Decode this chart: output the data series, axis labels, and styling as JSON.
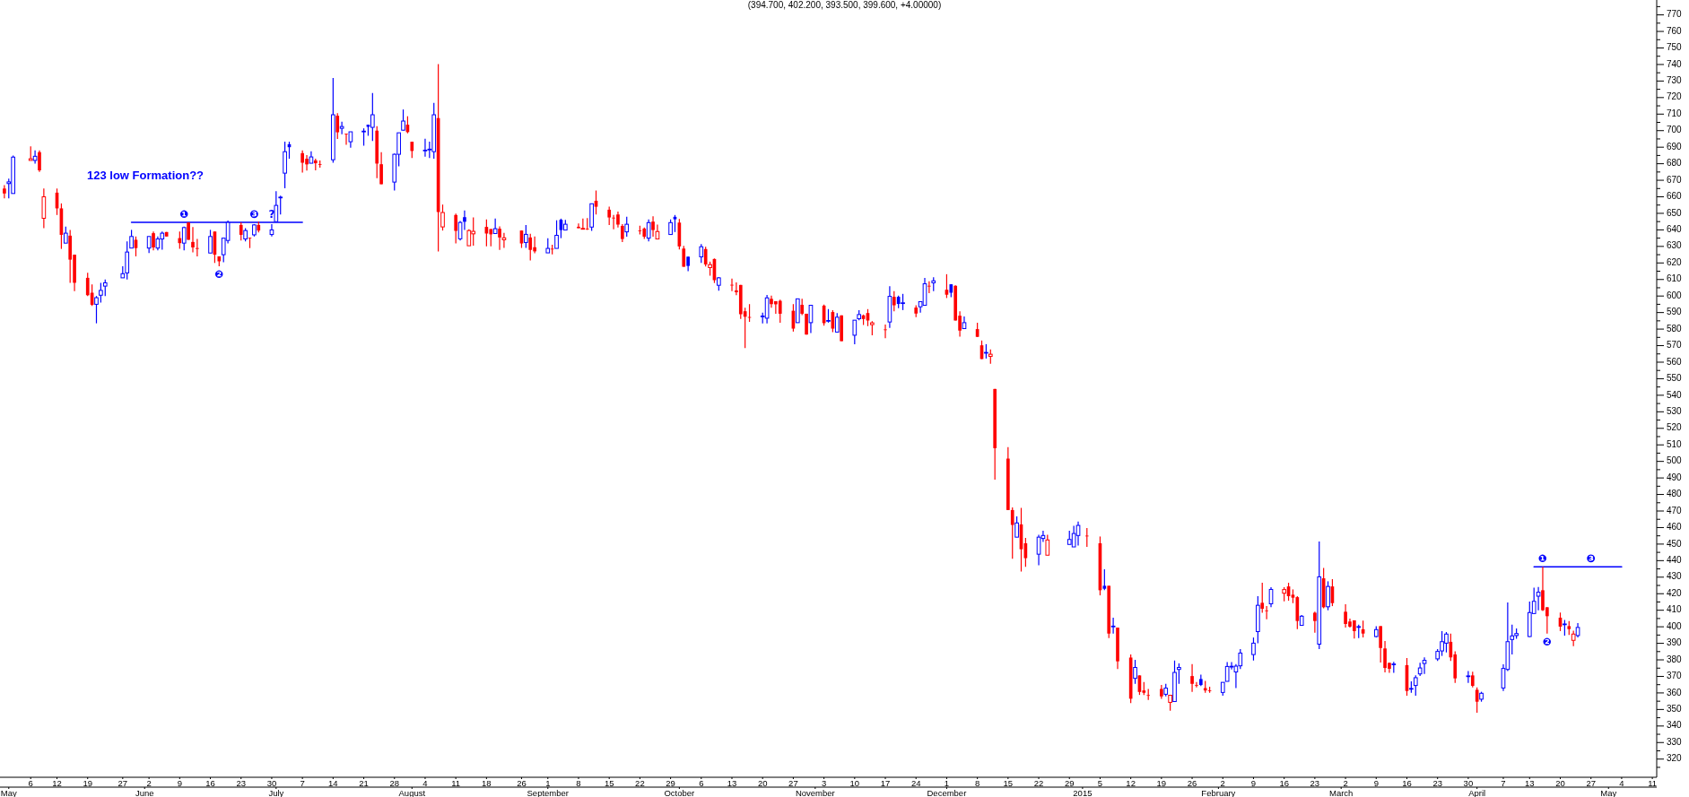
{
  "chart_data": {
    "type": "candlestick",
    "title": "(394.700, 402.200, 393.500, 399.600, +4.00000)",
    "x": [
      "2014-04-30",
      "2014-05-01",
      "2014-05-02",
      "2014-05-06",
      "2014-05-07",
      "2014-05-08",
      "2014-05-09",
      "2014-05-12",
      "2014-05-13",
      "2014-05-14",
      "2014-05-15",
      "2014-05-16",
      "2014-05-19",
      "2014-05-20",
      "2014-05-21",
      "2014-05-22",
      "2014-05-23",
      "2014-05-27",
      "2014-05-28",
      "2014-05-29",
      "2014-05-30",
      "2014-06-02",
      "2014-06-03",
      "2014-06-04",
      "2014-06-05",
      "2014-06-06",
      "2014-06-09",
      "2014-06-10",
      "2014-06-11",
      "2014-06-12",
      "2014-06-13",
      "2014-06-16",
      "2014-06-17",
      "2014-06-18",
      "2014-06-19",
      "2014-06-20",
      "2014-06-23",
      "2014-06-24",
      "2014-06-25",
      "2014-06-26",
      "2014-06-27",
      "2014-06-30",
      "2014-07-01",
      "2014-07-02",
      "2014-07-03",
      "2014-07-04",
      "2014-07-07",
      "2014-07-08",
      "2014-07-09",
      "2014-07-10",
      "2014-07-11",
      "2014-07-14",
      "2014-07-15",
      "2014-07-16",
      "2014-07-17",
      "2014-07-18",
      "2014-07-21",
      "2014-07-22",
      "2014-07-23",
      "2014-07-24",
      "2014-07-25",
      "2014-07-28",
      "2014-07-29",
      "2014-07-30",
      "2014-07-31",
      "2014-08-01",
      "2014-08-04",
      "2014-08-05",
      "2014-08-06",
      "2014-08-07",
      "2014-08-08",
      "2014-08-11",
      "2014-08-12",
      "2014-08-13",
      "2014-08-14",
      "2014-08-15",
      "2014-08-18",
      "2014-08-19",
      "2014-08-20",
      "2014-08-21",
      "2014-08-22",
      "2014-08-26",
      "2014-08-27",
      "2014-08-28",
      "2014-08-29",
      "2014-09-01",
      "2014-09-02",
      "2014-09-03",
      "2014-09-04",
      "2014-09-05",
      "2014-09-08",
      "2014-09-09",
      "2014-09-10",
      "2014-09-11",
      "2014-09-12",
      "2014-09-15",
      "2014-09-16",
      "2014-09-17",
      "2014-09-18",
      "2014-09-19",
      "2014-09-22",
      "2014-09-23",
      "2014-09-24",
      "2014-09-25",
      "2014-09-26",
      "2014-09-29",
      "2014-09-30",
      "2014-10-01",
      "2014-10-02",
      "2014-10-03",
      "2014-10-06",
      "2014-10-07",
      "2014-10-08",
      "2014-10-09",
      "2014-10-10",
      "2014-10-13",
      "2014-10-14",
      "2014-10-15",
      "2014-10-16",
      "2014-10-17",
      "2014-10-20",
      "2014-10-21",
      "2014-10-22",
      "2014-10-23",
      "2014-10-24",
      "2014-10-27",
      "2014-10-28",
      "2014-10-29",
      "2014-10-30",
      "2014-10-31",
      "2014-11-03",
      "2014-11-04",
      "2014-11-05",
      "2014-11-06",
      "2014-11-07",
      "2014-11-10",
      "2014-11-11",
      "2014-11-12",
      "2014-11-13",
      "2014-11-14",
      "2014-11-17",
      "2014-11-18",
      "2014-11-19",
      "2014-11-20",
      "2014-11-21",
      "2014-11-24",
      "2014-11-25",
      "2014-11-26",
      "2014-11-27",
      "2014-11-28",
      "2014-12-01",
      "2014-12-02",
      "2014-12-03",
      "2014-12-04",
      "2014-12-05",
      "2014-12-08",
      "2014-12-09",
      "2014-12-10",
      "2014-12-11",
      "2014-12-12",
      "2014-12-15",
      "2014-12-16",
      "2014-12-17",
      "2014-12-18",
      "2014-12-19",
      "2014-12-22",
      "2014-12-23",
      "2014-12-24",
      "2014-12-29",
      "2014-12-30",
      "2014-12-31",
      "2015-01-02",
      "2015-01-05",
      "2015-01-06",
      "2015-01-07",
      "2015-01-08",
      "2015-01-09",
      "2015-01-12",
      "2015-01-13",
      "2015-01-14",
      "2015-01-15",
      "2015-01-16",
      "2015-01-19",
      "2015-01-20",
      "2015-01-21",
      "2015-01-22",
      "2015-01-23",
      "2015-01-26",
      "2015-01-27",
      "2015-01-28",
      "2015-01-29",
      "2015-01-30",
      "2015-02-02",
      "2015-02-03",
      "2015-02-04",
      "2015-02-05",
      "2015-02-06",
      "2015-02-09",
      "2015-02-10",
      "2015-02-11",
      "2015-02-12",
      "2015-02-13",
      "2015-02-16",
      "2015-02-17",
      "2015-02-18",
      "2015-02-19",
      "2015-02-20",
      "2015-02-23",
      "2015-02-24",
      "2015-02-25",
      "2015-02-26",
      "2015-02-27",
      "2015-03-02",
      "2015-03-03",
      "2015-03-04",
      "2015-03-05",
      "2015-03-06",
      "2015-03-09",
      "2015-03-10",
      "2015-03-11",
      "2015-03-12",
      "2015-03-13",
      "2015-03-16",
      "2015-03-17",
      "2015-03-18",
      "2015-03-19",
      "2015-03-20",
      "2015-03-23",
      "2015-03-24",
      "2015-03-25",
      "2015-03-26",
      "2015-03-27",
      "2015-03-30",
      "2015-03-31",
      "2015-04-01",
      "2015-04-02",
      "2015-04-07",
      "2015-04-08",
      "2015-04-09",
      "2015-04-10",
      "2015-04-13",
      "2015-04-14",
      "2015-04-15",
      "2015-04-16",
      "2015-04-17",
      "2015-04-20",
      "2015-04-21",
      "2015-04-22",
      "2015-04-23",
      "2015-04-24"
    ],
    "ohlc": [
      [
        665,
        667,
        659,
        662
      ],
      [
        668,
        671,
        659,
        669
      ],
      [
        662,
        685,
        662,
        684
      ],
      [
        682,
        690.5,
        682,
        683
      ],
      [
        682,
        688,
        680,
        684.5
      ],
      [
        687,
        688,
        675,
        676
      ],
      [
        647,
        665,
        641,
        660
      ],
      [
        662.5,
        665,
        649,
        653
      ],
      [
        653,
        656,
        628.5,
        637
      ],
      [
        632,
        642,
        632,
        638
      ],
      [
        636.5,
        640,
        608,
        622
      ],
      [
        625,
        625,
        603,
        608
      ],
      [
        611,
        614,
        600,
        600.5
      ],
      [
        602,
        607,
        594,
        594.7
      ],
      [
        595,
        600,
        583.5,
        599
      ],
      [
        600.5,
        608,
        596,
        603.4
      ],
      [
        606,
        610,
        600,
        608
      ],
      [
        611,
        618,
        611,
        613.5
      ],
      [
        614,
        633,
        610,
        626.6
      ],
      [
        629,
        640,
        629,
        636
      ],
      [
        634,
        636,
        624,
        629
      ],
      [
        629,
        636,
        626,
        636
      ],
      [
        638,
        639,
        627.6,
        629.4
      ],
      [
        629,
        636,
        627.6,
        634.5
      ],
      [
        634.5,
        639,
        628,
        638
      ],
      [
        638.7,
        638.7,
        636,
        636
      ],
      [
        635,
        639,
        628.5,
        632
      ],
      [
        632,
        642,
        627.6,
        641.4
      ],
      [
        644.5,
        644.5,
        634,
        634
      ],
      [
        632.7,
        641.7,
        626.4,
        629.4
      ],
      [
        629,
        634.5,
        624,
        628.5
      ],
      [
        626,
        640,
        626,
        636
      ],
      [
        639,
        639,
        620,
        625
      ],
      [
        624,
        624,
        618,
        621
      ],
      [
        625,
        635,
        620.4,
        635
      ],
      [
        633.6,
        645.7,
        631.8,
        644.5
      ],
      [
        643,
        644.5,
        633.6,
        637
      ],
      [
        634.5,
        641,
        633,
        639.6
      ],
      [
        635.3,
        635.3,
        629,
        635.2
      ],
      [
        637,
        643.5,
        636,
        643
      ],
      [
        643,
        645,
        638.5,
        639.6
      ],
      [
        637.2,
        643.5,
        636,
        640
      ],
      [
        645,
        663.4,
        645,
        654.8
      ],
      [
        659.5,
        660.7,
        649.3,
        659.8
      ],
      [
        674.3,
        693.3,
        665.2,
        687.3
      ],
      [
        691.8,
        693.3,
        683,
        690
      ],
      [
        686.4,
        688,
        674.7,
        680.6
      ],
      [
        683,
        685.2,
        675.8,
        679.6
      ],
      [
        680.3,
        687.5,
        680.3,
        684.1
      ],
      [
        682,
        683,
        676,
        680.3
      ],
      [
        679.8,
        681.9,
        677.6,
        679.6
      ],
      [
        682.4,
        731.8,
        680.6,
        709.6
      ],
      [
        709,
        710.5,
        695,
        699
      ],
      [
        701.4,
        705.4,
        697.8,
        702.5
      ],
      [
        698.2,
        698.2,
        691.5,
        698
      ],
      [
        693.3,
        699.3,
        689.7,
        699.3
      ],
      [
        699.5,
        701.4,
        690.9,
        699.7
      ],
      [
        703.6,
        703.6,
        696.9,
        702.3
      ],
      [
        702,
        722.8,
        693.7,
        709.6
      ],
      [
        700,
        702.7,
        671.2,
        680.1
      ],
      [
        679.7,
        687,
        667.6,
        667.6
      ],
      [
        668.9,
        686.1,
        663.8,
        685.7
      ],
      [
        685.7,
        698.7,
        678.5,
        698.7
      ],
      [
        700.3,
        712.8,
        700,
        705.8
      ],
      [
        703.6,
        708.7,
        698.4,
        699.1
      ],
      [
        693.3,
        693.3,
        683.4,
        687.7
      ],
      [
        688,
        695.1,
        684.3,
        688.2
      ],
      [
        688.5,
        693.3,
        683.4,
        688.8
      ],
      [
        687.3,
        716.8,
        683,
        709.6
      ],
      [
        707.6,
        740.3,
        627,
        650.8
      ],
      [
        641.8,
        655.3,
        639.6,
        650.5
      ],
      [
        649,
        649.9,
        631.8,
        639.4
      ],
      [
        634.6,
        645.4,
        633.6,
        644.5
      ],
      [
        647.7,
        651.7,
        640,
        644.9
      ],
      [
        630.4,
        640.3,
        630.4,
        639.6
      ],
      [
        637.6,
        647.6,
        630.4,
        639.1
      ],
      [
        641.8,
        646.3,
        630,
        637.8
      ],
      [
        640.5,
        640.5,
        630,
        637.3
      ],
      [
        637.8,
        646.8,
        637.8,
        640.7
      ],
      [
        640.7,
        642.1,
        627.9,
        635.4
      ],
      [
        634,
        638.2,
        629.1,
        635.2
      ],
      [
        639.6,
        639.6,
        629.1,
        631.8
      ],
      [
        632.4,
        643,
        629.1,
        637.3
      ],
      [
        635.4,
        637.6,
        621.5,
        627.9
      ],
      [
        629.5,
        636,
        625.9,
        627
      ],
      [
        626.1,
        634.9,
        626.1,
        628.8
      ],
      [
        628.6,
        631,
        625.2,
        628.4
      ],
      [
        628.8,
        645.8,
        628.8,
        636.7
      ],
      [
        646.1,
        646.8,
        635,
        639.9
      ],
      [
        639.9,
        646.1,
        639.9,
        643.4
      ],
      [
        641.9,
        643.9,
        641,
        641
      ],
      [
        640.4,
        646.8,
        640.4,
        640.9
      ],
      [
        640.7,
        647.2,
        639.9,
        640.6
      ],
      [
        641.7,
        655.8,
        639.4,
        655.8
      ],
      [
        657.6,
        663.8,
        649.3,
        654
      ],
      [
        652.2,
        654,
        643,
        647.5
      ],
      [
        647.4,
        649,
        640.3,
        647.3
      ],
      [
        649.3,
        651.1,
        641.4,
        643.2
      ],
      [
        642.4,
        643.5,
        632.7,
        634.5
      ],
      [
        638.8,
        647.9,
        635.9,
        643.4
      ],
      [
        639.6,
        642.5,
        637.2,
        639.4
      ],
      [
        640.8,
        641.4,
        634.5,
        635.9
      ],
      [
        635,
        646.3,
        633.1,
        644.4
      ],
      [
        645,
        648.2,
        635.9,
        639.9
      ],
      [
        634.5,
        643.2,
        634.5,
        639
      ],
      [
        637.2,
        646.3,
        637.2,
        644.4
      ],
      [
        647.9,
        649,
        638.7,
        646.4
      ],
      [
        644.4,
        646.6,
        628.2,
        630
      ],
      [
        628.7,
        630.3,
        617.7,
        617.7
      ],
      [
        623.8,
        623.8,
        615,
        618.2
      ],
      [
        623.7,
        631.4,
        620,
        629.8
      ],
      [
        628.4,
        629.8,
        617.9,
        619.1
      ],
      [
        617.2,
        620.8,
        612.3,
        619
      ],
      [
        622.4,
        622.7,
        607.9,
        609.6
      ],
      [
        606.5,
        611.5,
        603.2,
        611
      ],
      [
        606.8,
        610.5,
        602.9,
        606.6
      ],
      [
        603.4,
        608.3,
        600.5,
        602.3
      ],
      [
        606.7,
        606.7,
        586.2,
        589
      ],
      [
        590.8,
        592.9,
        568.5,
        587.5
      ],
      [
        587.3,
        595.1,
        584.4,
        587.1
      ],
      [
        587.6,
        590,
        583.5,
        587.9
      ],
      [
        586.6,
        600.7,
        583.5,
        598.9
      ],
      [
        598.3,
        600.2,
        592.9,
        595.1
      ],
      [
        596.9,
        596.9,
        589.3,
        595
      ],
      [
        597.1,
        597.8,
        583.9,
        589.3
      ],
      [
        591.1,
        595.1,
        578.5,
        580.3
      ],
      [
        583.9,
        598.3,
        583.9,
        598.3
      ],
      [
        594.7,
        598.3,
        588.4,
        589.3
      ],
      [
        589.3,
        589.3,
        576.7,
        576.7
      ],
      [
        583.9,
        594.7,
        577.6,
        594.4
      ],
      [
        594.2,
        594.8,
        582.1,
        583.6
      ],
      [
        585,
        592.1,
        583.9,
        585.2
      ],
      [
        590.3,
        591.5,
        578.2,
        580.3
      ],
      [
        578.2,
        589.7,
        578.2,
        587.2
      ],
      [
        588.3,
        588.3,
        572.7,
        572.7
      ],
      [
        576.3,
        585.4,
        570.9,
        585.4
      ],
      [
        586.3,
        591.5,
        585.4,
        588.8
      ],
      [
        588.3,
        588.8,
        582.5,
        586.1
      ],
      [
        589.7,
        592.1,
        581.8,
        585.2
      ],
      [
        582.7,
        584.8,
        576.3,
        583.8
      ],
      [
        579.8,
        582.7,
        574.5,
        579.7
      ],
      [
        584.3,
        606,
        580.7,
        599.8
      ],
      [
        599.5,
        602.9,
        590.8,
        594.4
      ],
      [
        599.5,
        600.2,
        592.6,
        595.2
      ],
      [
        595.7,
        601.3,
        591.5,
        595.9
      ],
      [
        593,
        594.4,
        587.2,
        589.4
      ],
      [
        593.5,
        596.6,
        589.9,
        596.6
      ],
      [
        594.4,
        611,
        594.4,
        607.4
      ],
      [
        606.2,
        608.9,
        601.7,
        606
      ],
      [
        608,
        611.4,
        602.9,
        609.2
      ],
      [
        603.8,
        613.2,
        598.8,
        600.8
      ],
      [
        607.1,
        607.1,
        599.3,
        602
      ],
      [
        606.2,
        606.5,
        585.2,
        585.2
      ],
      [
        588.1,
        590.8,
        575.4,
        579.1
      ],
      [
        580.3,
        587.6,
        580.3,
        583.9
      ],
      [
        580,
        583.9,
        575.3,
        575.3
      ],
      [
        570.2,
        573.1,
        561.9,
        561.9
      ],
      [
        565.7,
        570.9,
        562.2,
        565.9
      ],
      [
        563.5,
        567.7,
        559,
        564.8
      ],
      [
        543.8,
        543.8,
        489,
        508
      ],
      [
        501.7,
        508.6,
        470.6,
        470.6
      ],
      [
        470.6,
        472.2,
        441.1,
        461.6
      ],
      [
        454.2,
        466.8,
        454.2,
        462.8
      ],
      [
        461.9,
        471.9,
        433.4,
        446.9
      ],
      [
        450.5,
        453.8,
        436.3,
        441.5
      ],
      [
        443.9,
        455.6,
        437.2,
        454.2
      ],
      [
        453.4,
        458.1,
        451.3,
        455.2
      ],
      [
        443.3,
        455.6,
        443.3,
        452.5
      ],
      [
        449.8,
        458.1,
        449.8,
        452.8
      ],
      [
        448.3,
        461,
        448.3,
        456.4
      ],
      [
        455.2,
        463.7,
        449.2,
        461.3
      ],
      [
        455.1,
        459.7,
        448.3,
        455
      ],
      [
        450.5,
        454.6,
        419,
        422.1
      ],
      [
        424.8,
        434.7,
        422.1,
        423
      ],
      [
        424.8,
        424.8,
        393.2,
        395.9
      ],
      [
        400.2,
        405.5,
        395.9,
        400.4
      ],
      [
        399.5,
        399.5,
        374.5,
        379.1
      ],
      [
        381.4,
        383.2,
        353.9,
        356.5
      ],
      [
        368.8,
        380,
        365.5,
        375.4
      ],
      [
        370.6,
        370.6,
        358.8,
        360.6
      ],
      [
        361.5,
        366.6,
        358.8,
        360.1
      ],
      [
        358.7,
        362.4,
        355.7,
        358.6
      ],
      [
        362.4,
        364.8,
        356.5,
        357.9
      ],
      [
        359.2,
        365.5,
        357.9,
        362.9
      ],
      [
        354.3,
        358.6,
        349.2,
        358.6
      ],
      [
        354.8,
        379.6,
        354.8,
        372.4
      ],
      [
        374.2,
        377.8,
        365.5,
        375.4
      ],
      [
        370.2,
        377.4,
        360.6,
        365.5
      ],
      [
        364.7,
        366.6,
        363.3,
        364.6
      ],
      [
        368.4,
        371.1,
        364.2,
        364.8
      ],
      [
        362.9,
        367.3,
        360.1,
        361.5
      ],
      [
        361.5,
        363.7,
        360.1,
        361.4
      ],
      [
        360.3,
        366.4,
        358.3,
        366.4
      ],
      [
        367,
        378.7,
        367,
        376
      ],
      [
        375.9,
        378.7,
        374.2,
        376.1
      ],
      [
        372.7,
        377.4,
        362.9,
        376.2
      ],
      [
        376.4,
        386.5,
        374.5,
        384.1
      ],
      [
        383.2,
        393.5,
        379.6,
        390.1
      ],
      [
        397.1,
        418.5,
        390.1,
        413
      ],
      [
        414.5,
        426.6,
        408.5,
        410.9
      ],
      [
        409.9,
        412.5,
        404.6,
        409.8
      ],
      [
        413.9,
        423.9,
        411.8,
        422.6
      ],
      [
        420.3,
        423.9,
        415.4,
        422.5
      ],
      [
        424.4,
        426.6,
        415.8,
        418.5
      ],
      [
        419.4,
        422.6,
        414.3,
        417.6
      ],
      [
        417.9,
        418.5,
        398.6,
        403.5
      ],
      [
        400.9,
        407.1,
        400.9,
        406.4
      ],
      [
        408.5,
        409.1,
        396.4,
        403.5
      ],
      [
        389.5,
        451.6,
        386.5,
        430.2
      ],
      [
        429.3,
        435.6,
        411.2,
        411.8
      ],
      [
        412.1,
        427.5,
        410,
        424.4
      ],
      [
        424.4,
        428.8,
        412.5,
        414.3
      ],
      [
        409.1,
        413.6,
        399.5,
        401.7
      ],
      [
        403.2,
        405,
        399.5,
        400.1
      ],
      [
        403.9,
        403.9,
        392.9,
        397.4
      ],
      [
        399.9,
        401.3,
        393.2,
        400.1
      ],
      [
        398.5,
        403.7,
        393.6,
        395.9
      ],
      [
        394.1,
        400.4,
        393.6,
        398.3
      ],
      [
        400.4,
        400.4,
        378.4,
        387.2
      ],
      [
        386.9,
        391.4,
        372.4,
        375.1
      ],
      [
        378.2,
        378.2,
        372.1,
        374.6
      ],
      [
        377.3,
        378.8,
        372.1,
        377.5
      ],
      [
        376.8,
        381.1,
        358.3,
        361.2
      ],
      [
        362.5,
        367,
        360.1,
        362.7
      ],
      [
        364.5,
        370.6,
        358.3,
        369.2
      ],
      [
        371.5,
        378.2,
        370.3,
        375.1
      ],
      [
        377.8,
        381.5,
        371.5,
        379.7
      ],
      [
        380.6,
        386.5,
        379.3,
        385.1
      ],
      [
        385.4,
        397.4,
        382.4,
        391
      ],
      [
        390.1,
        396.8,
        384.5,
        395.6
      ],
      [
        390.9,
        395.9,
        379.3,
        381.5
      ],
      [
        383.3,
        385.1,
        366.1,
        368.8
      ],
      [
        370.1,
        373.3,
        366.1,
        370.3
      ],
      [
        370.6,
        372.8,
        363.4,
        364.3
      ],
      [
        361.9,
        363.4,
        348,
        354.7
      ],
      [
        356.2,
        360.7,
        354.7,
        359.8
      ],
      [
        363,
        377.3,
        361.2,
        374.8
      ],
      [
        374.2,
        414.7,
        373.3,
        391
      ],
      [
        392.3,
        401.3,
        383.3,
        394.5
      ],
      [
        394.7,
        399,
        392.7,
        395.9
      ],
      [
        394.1,
        415.3,
        393.8,
        408.6
      ],
      [
        408,
        423.6,
        408,
        415.4
      ],
      [
        418.5,
        424,
        410,
        420.9
      ],
      [
        422.1,
        436.2,
        409.5,
        410
      ],
      [
        411.8,
        411.8,
        395.9,
        406.4
      ],
      [
        405.5,
        408.6,
        397.4,
        400.1
      ],
      [
        401.5,
        404.1,
        394.7,
        401.7
      ],
      [
        400.4,
        403.5,
        395,
        398.6
      ],
      [
        391.8,
        397.7,
        388.3,
        395.6
      ],
      [
        394.7,
        402.2,
        393.5,
        399.6
      ]
    ],
    "colors": [
      "#ff0000",
      "#0000ff",
      "#0000ff",
      "#ff0000",
      "#0000ff",
      "#ff0000",
      "#ff0000",
      "#ff0000",
      "#ff0000",
      "#0000ff",
      "#ff0000",
      "#ff0000",
      "#ff0000",
      "#ff0000",
      "#0000ff",
      "#0000ff",
      "#0000ff",
      "#0000ff",
      "#0000ff",
      "#0000ff",
      "#ff0000",
      "#0000ff",
      "#ff0000",
      "#0000ff",
      "#0000ff",
      "#ff0000",
      "#ff0000",
      "#0000ff",
      "#ff0000",
      "#ff0000",
      "#ff0000",
      "#0000ff",
      "#ff0000",
      "#ff0000",
      "#0000ff",
      "#0000ff",
      "#ff0000",
      "#0000ff",
      "#ff0000",
      "#0000ff",
      "#ff0000",
      "#0000ff",
      "#0000ff",
      "#0000ff",
      "#0000ff",
      "#0000ff",
      "#ff0000",
      "#ff0000",
      "#0000ff",
      "#ff0000",
      "#ff0000",
      "#0000ff",
      "#ff0000",
      "#0000ff",
      "#ff0000",
      "#0000ff",
      "#0000ff",
      "#0000ff",
      "#0000ff",
      "#ff0000",
      "#ff0000",
      "#0000ff",
      "#0000ff",
      "#0000ff",
      "#ff0000",
      "#ff0000",
      "#0000ff",
      "#0000ff",
      "#0000ff",
      "#ff0000",
      "#ff0000",
      "#ff0000",
      "#0000ff",
      "#0000ff",
      "#ff0000",
      "#ff0000",
      "#ff0000",
      "#ff0000",
      "#0000ff",
      "#ff0000",
      "#ff0000",
      "#ff0000",
      "#0000ff",
      "#ff0000",
      "#ff0000",
      "#0000ff",
      "#ff0000",
      "#0000ff",
      "#0000ff",
      "#0000ff",
      "#ff0000",
      "#ff0000",
      "#ff0000",
      "#0000ff",
      "#ff0000",
      "#ff0000",
      "#ff0000",
      "#ff0000",
      "#ff0000",
      "#0000ff",
      "#ff0000",
      "#ff0000",
      "#0000ff",
      "#ff0000",
      "#ff0000",
      "#0000ff",
      "#0000ff",
      "#ff0000",
      "#ff0000",
      "#0000ff",
      "#0000ff",
      "#ff0000",
      "#ff0000",
      "#ff0000",
      "#0000ff",
      "#ff0000",
      "#ff0000",
      "#ff0000",
      "#ff0000",
      "#ff0000",
      "#0000ff",
      "#0000ff",
      "#ff0000",
      "#ff0000",
      "#ff0000",
      "#ff0000",
      "#0000ff",
      "#ff0000",
      "#ff0000",
      "#0000ff",
      "#ff0000",
      "#0000ff",
      "#ff0000",
      "#0000ff",
      "#ff0000",
      "#0000ff",
      "#0000ff",
      "#ff0000",
      "#ff0000",
      "#ff0000",
      "#ff0000",
      "#0000ff",
      "#ff0000",
      "#0000ff",
      "#0000ff",
      "#ff0000",
      "#0000ff",
      "#0000ff",
      "#ff0000",
      "#0000ff",
      "#ff0000",
      "#0000ff",
      "#ff0000",
      "#ff0000",
      "#0000ff",
      "#ff0000",
      "#ff0000",
      "#0000ff",
      "#ff0000",
      "#ff0000",
      "#ff0000",
      "#ff0000",
      "#0000ff",
      "#ff0000",
      "#ff0000",
      "#0000ff",
      "#0000ff",
      "#ff0000",
      "#0000ff",
      "#0000ff",
      "#0000ff",
      "#ff0000",
      "#ff0000",
      "#0000ff",
      "#ff0000",
      "#0000ff",
      "#ff0000",
      "#ff0000",
      "#0000ff",
      "#ff0000",
      "#ff0000",
      "#ff0000",
      "#ff0000",
      "#0000ff",
      "#ff0000",
      "#0000ff",
      "#0000ff",
      "#ff0000",
      "#ff0000",
      "#0000ff",
      "#ff0000",
      "#ff0000",
      "#0000ff",
      "#0000ff",
      "#0000ff",
      "#0000ff",
      "#0000ff",
      "#0000ff",
      "#0000ff",
      "#ff0000",
      "#ff0000",
      "#0000ff",
      "#ff0000",
      "#ff0000",
      "#ff0000",
      "#ff0000",
      "#0000ff",
      "#ff0000",
      "#0000ff",
      "#ff0000",
      "#0000ff",
      "#ff0000",
      "#ff0000",
      "#ff0000",
      "#ff0000",
      "#0000ff",
      "#ff0000",
      "#0000ff",
      "#ff0000",
      "#ff0000",
      "#ff0000",
      "#0000ff",
      "#ff0000",
      "#0000ff",
      "#0000ff",
      "#0000ff",
      "#0000ff",
      "#0000ff",
      "#0000ff",
      "#0000ff",
      "#ff0000",
      "#ff0000",
      "#0000ff",
      "#ff0000",
      "#ff0000",
      "#0000ff",
      "#0000ff",
      "#0000ff",
      "#0000ff",
      "#0000ff",
      "#0000ff",
      "#0000ff",
      "#0000ff",
      "#ff0000",
      "#ff0000",
      "#ff0000",
      "#0000ff",
      "#ff0000",
      "#ff0000",
      "#0000ff"
    ],
    "series": [
      {
        "type": "line",
        "x": [
          "2014-05-29",
          "2014-07-07"
        ],
        "values": [
          644.5,
          644.5
        ],
        "color": "#0000ff"
      },
      {
        "type": "line",
        "x": [
          "2015-04-14",
          "2015-05-04"
        ],
        "values": [
          436.2,
          436.2
        ],
        "color": "#0000ff"
      }
    ],
    "annotations": [
      "123 low Formation??",
      {
        "text": "❶",
        "x": "2014-06-10",
        "y": 644.5
      },
      {
        "text": "❷",
        "x": "2014-06-18",
        "y": 618
      },
      {
        "text": "❸",
        "x": "2014-06-26",
        "y": 644.5
      },
      {
        "text": "?",
        "x": "2014-06-30",
        "y": 644.5
      },
      {
        "text": "❶",
        "x": "2015-04-16",
        "y": 436.2
      },
      {
        "text": "❷",
        "x": "2015-04-17",
        "y": 395.9
      },
      {
        "text": "❸",
        "x": "2015-04-27",
        "y": 436.2
      }
    ],
    "xlim": [
      "2014-04-29",
      "2015-05-12"
    ],
    "x2lim": [
      "2014-04-29",
      "2015-05-12"
    ],
    "x2ticks": [
      {
        "value": "2014-05",
        "label": "May"
      },
      {
        "value": "2014-06",
        "label": "June"
      },
      {
        "value": "2014-07",
        "label": "July"
      },
      {
        "value": "2014-08",
        "label": "August"
      },
      {
        "value": "2014-09",
        "label": "September"
      },
      {
        "value": "2014-10",
        "label": "October"
      },
      {
        "value": "2014-11",
        "label": "November"
      },
      {
        "value": "2014-12",
        "label": "December"
      },
      {
        "value": "2015-01",
        "label": "2015"
      },
      {
        "value": "2015-02",
        "label": "February"
      },
      {
        "value": "2015-03",
        "label": "March"
      },
      {
        "value": "2015-04",
        "label": "April"
      },
      {
        "value": "2015-05",
        "label": "May"
      }
    ],
    "xticks": [
      {
        "value": "2014-05-06",
        "label": "6"
      },
      {
        "value": "2014-05-12",
        "label": "12"
      },
      {
        "value": "2014-05-19",
        "label": "19"
      },
      {
        "value": "2014-05-27",
        "label": "27"
      },
      {
        "value": "2014-06-02",
        "label": "2"
      },
      {
        "value": "2014-06-09",
        "label": "9"
      },
      {
        "value": "2014-06-16",
        "label": "16"
      },
      {
        "value": "2014-06-23",
        "label": "23"
      },
      {
        "value": "2014-06-30",
        "label": "30"
      },
      {
        "value": "2014-07-07",
        "label": "7"
      },
      {
        "value": "2014-07-14",
        "label": "14"
      },
      {
        "value": "2014-07-21",
        "label": "21"
      },
      {
        "value": "2014-07-28",
        "label": "28"
      },
      {
        "value": "2014-08-04",
        "label": "4"
      },
      {
        "value": "2014-08-11",
        "label": "11"
      },
      {
        "value": "2014-08-18",
        "label": "18"
      },
      {
        "value": "2014-08-26",
        "label": "26"
      },
      {
        "value": "2014-09-01",
        "label": "1"
      },
      {
        "value": "2014-09-08",
        "label": "8"
      },
      {
        "value": "2014-09-15",
        "label": "15"
      },
      {
        "value": "2014-09-22",
        "label": "22"
      },
      {
        "value": "2014-09-29",
        "label": "29"
      },
      {
        "value": "2014-10-06",
        "label": "6"
      },
      {
        "value": "2014-10-13",
        "label": "13"
      },
      {
        "value": "2014-10-20",
        "label": "20"
      },
      {
        "value": "2014-10-27",
        "label": "27"
      },
      {
        "value": "2014-11-03",
        "label": "3"
      },
      {
        "value": "2014-11-10",
        "label": "10"
      },
      {
        "value": "2014-11-17",
        "label": "17"
      },
      {
        "value": "2014-11-24",
        "label": "24"
      },
      {
        "value": "2014-12-01",
        "label": "1"
      },
      {
        "value": "2014-12-08",
        "label": "8"
      },
      {
        "value": "2014-12-15",
        "label": "15"
      },
      {
        "value": "2014-12-22",
        "label": "22"
      },
      {
        "value": "2014-12-29",
        "label": "29"
      },
      {
        "value": "2015-01-05",
        "label": "5"
      },
      {
        "value": "2015-01-12",
        "label": "12"
      },
      {
        "value": "2015-01-19",
        "label": "19"
      },
      {
        "value": "2015-01-26",
        "label": "26"
      },
      {
        "value": "2015-02-02",
        "label": "2"
      },
      {
        "value": "2015-02-09",
        "label": "9"
      },
      {
        "value": "2015-02-16",
        "label": "16"
      },
      {
        "value": "2015-02-23",
        "label": "23"
      },
      {
        "value": "2015-03-02",
        "label": "2"
      },
      {
        "value": "2015-03-09",
        "label": "9"
      },
      {
        "value": "2015-03-16",
        "label": "16"
      },
      {
        "value": "2015-03-23",
        "label": "23"
      },
      {
        "value": "2015-03-30",
        "label": "30"
      },
      {
        "value": "2015-04-07",
        "label": "7"
      },
      {
        "value": "2015-04-13",
        "label": "13"
      },
      {
        "value": "2015-04-20",
        "label": "20"
      },
      {
        "value": "2015-04-27",
        "label": "27"
      },
      {
        "value": "2015-05-04",
        "label": "4"
      },
      {
        "value": "2015-05-11",
        "label": "11"
      }
    ],
    "ylim": [
      309,
      779
    ],
    "yticks": [
      {
        "value": 315,
        "label": null
      },
      320,
      {
        "value": 325,
        "label": null
      },
      330,
      {
        "value": 335,
        "label": null
      },
      340,
      {
        "value": 345,
        "label": null
      },
      350,
      {
        "value": 355,
        "label": null
      },
      360,
      {
        "value": 365,
        "label": null
      },
      370,
      {
        "value": 375,
        "label": null
      },
      380,
      {
        "value": 385,
        "label": null
      },
      390,
      {
        "value": 395,
        "label": null
      },
      400,
      {
        "value": 405,
        "label": null
      },
      410,
      {
        "value": 415,
        "label": null
      },
      420,
      {
        "value": 425,
        "label": null
      },
      430,
      {
        "value": 435,
        "label": null
      },
      440,
      {
        "value": 445,
        "label": null
      },
      450,
      {
        "value": 455,
        "label": null
      },
      460,
      {
        "value": 465,
        "label": null
      },
      470,
      {
        "value": 475,
        "label": null
      },
      480,
      {
        "value": 485,
        "label": null
      },
      490,
      {
        "value": 495,
        "label": null
      },
      500,
      {
        "value": 505,
        "label": null
      },
      510,
      {
        "value": 515,
        "label": null
      },
      520,
      {
        "value": 525,
        "label": null
      },
      530,
      {
        "value": 535,
        "label": null
      },
      540,
      {
        "value": 545,
        "label": null
      },
      550,
      {
        "value": 555,
        "label": null
      },
      560,
      {
        "value": 565,
        "label": null
      },
      570,
      {
        "value": 575,
        "label": null
      },
      580,
      {
        "value": 585,
        "label": null
      },
      590,
      {
        "value": 595,
        "label": null
      },
      600,
      {
        "value": 605,
        "label": null
      },
      610,
      {
        "value": 615,
        "label": null
      },
      620,
      {
        "value": 625,
        "label": null
      },
      630,
      {
        "value": 635,
        "label": null
      },
      640,
      {
        "value": 645,
        "label": null
      },
      650,
      {
        "value": 655,
        "label": null
      },
      660,
      {
        "value": 665,
        "label": null
      },
      670,
      {
        "value": 675,
        "label": null
      },
      680,
      {
        "value": 685,
        "label": null
      },
      690,
      {
        "value": 695,
        "label": null
      },
      700,
      {
        "value": 705,
        "label": null
      },
      710,
      {
        "value": 715,
        "label": null
      },
      720,
      {
        "value": 725,
        "label": null
      },
      730,
      {
        "value": 735,
        "label": null
      },
      740,
      {
        "value": 745,
        "label": null
      },
      750,
      {
        "value": 755,
        "label": null
      },
      760,
      {
        "value": 765,
        "label": null
      },
      770,
      {
        "value": 775,
        "label": null
      }
    ]
  }
}
